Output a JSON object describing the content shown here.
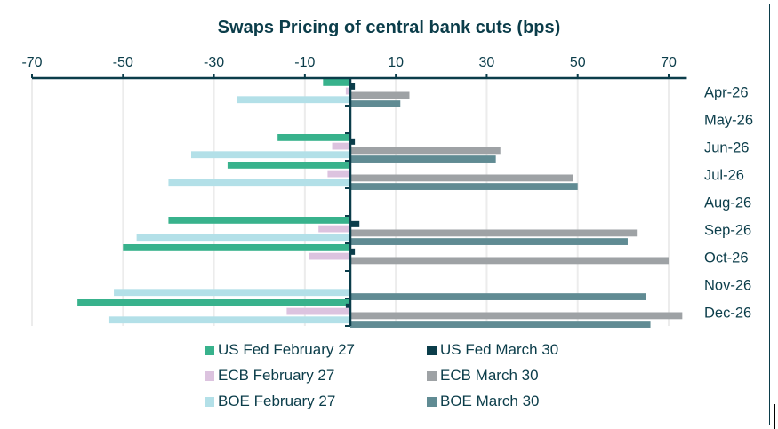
{
  "chart_data": {
    "type": "bar",
    "orientation": "horizontal",
    "title": "Swaps Pricing of central bank cuts (bps)",
    "xlabel": "",
    "ylabel": "",
    "xlim": [
      -70,
      74
    ],
    "x_ticks": [
      -70,
      -50,
      -30,
      -10,
      10,
      30,
      50,
      70
    ],
    "x_tick_labels": [
      "-70",
      "-50",
      "-30",
      "-10",
      "10",
      "30",
      "50",
      "70"
    ],
    "x_axis_position": "top",
    "category_label_position": "right",
    "grid": true,
    "legend_position": "bottom",
    "categories": [
      "Apr-26",
      "May-26",
      "Jun-26",
      "Jul-26",
      "Aug-26",
      "Sep-26",
      "Oct-26",
      "Nov-26",
      "Dec-26"
    ],
    "series": [
      {
        "name": "US Fed February 27",
        "color": "#38b28c",
        "values": [
          -6,
          0,
          -16,
          -27,
          0,
          -40,
          -50,
          0,
          -60
        ]
      },
      {
        "name": "US Fed March 30",
        "color": "#0b3d4a",
        "values": [
          1,
          0,
          1,
          0,
          0,
          2,
          1,
          0,
          -1
        ]
      },
      {
        "name": "ECB February 27",
        "color": "#dcc3df",
        "values": [
          -1,
          0,
          -4,
          -5,
          0,
          -7,
          -9,
          0,
          -14
        ]
      },
      {
        "name": "ECB March 30",
        "color": "#9ea2a5",
        "values": [
          13,
          0,
          33,
          49,
          0,
          63,
          70,
          0,
          73
        ]
      },
      {
        "name": "BOE February 27",
        "color": "#b3e0e8",
        "values": [
          -25,
          0,
          -35,
          -40,
          0,
          -47,
          0,
          -52,
          -53
        ]
      },
      {
        "name": "BOE March 30",
        "color": "#608b93",
        "values": [
          11,
          0,
          32,
          50,
          0,
          61,
          0,
          65,
          66
        ]
      }
    ],
    "legend_order": [
      [
        "US Fed February 27",
        "US Fed March 30"
      ],
      [
        "ECB February 27",
        "ECB March 30"
      ],
      [
        "BOE February 27",
        "BOE March 30"
      ]
    ]
  }
}
